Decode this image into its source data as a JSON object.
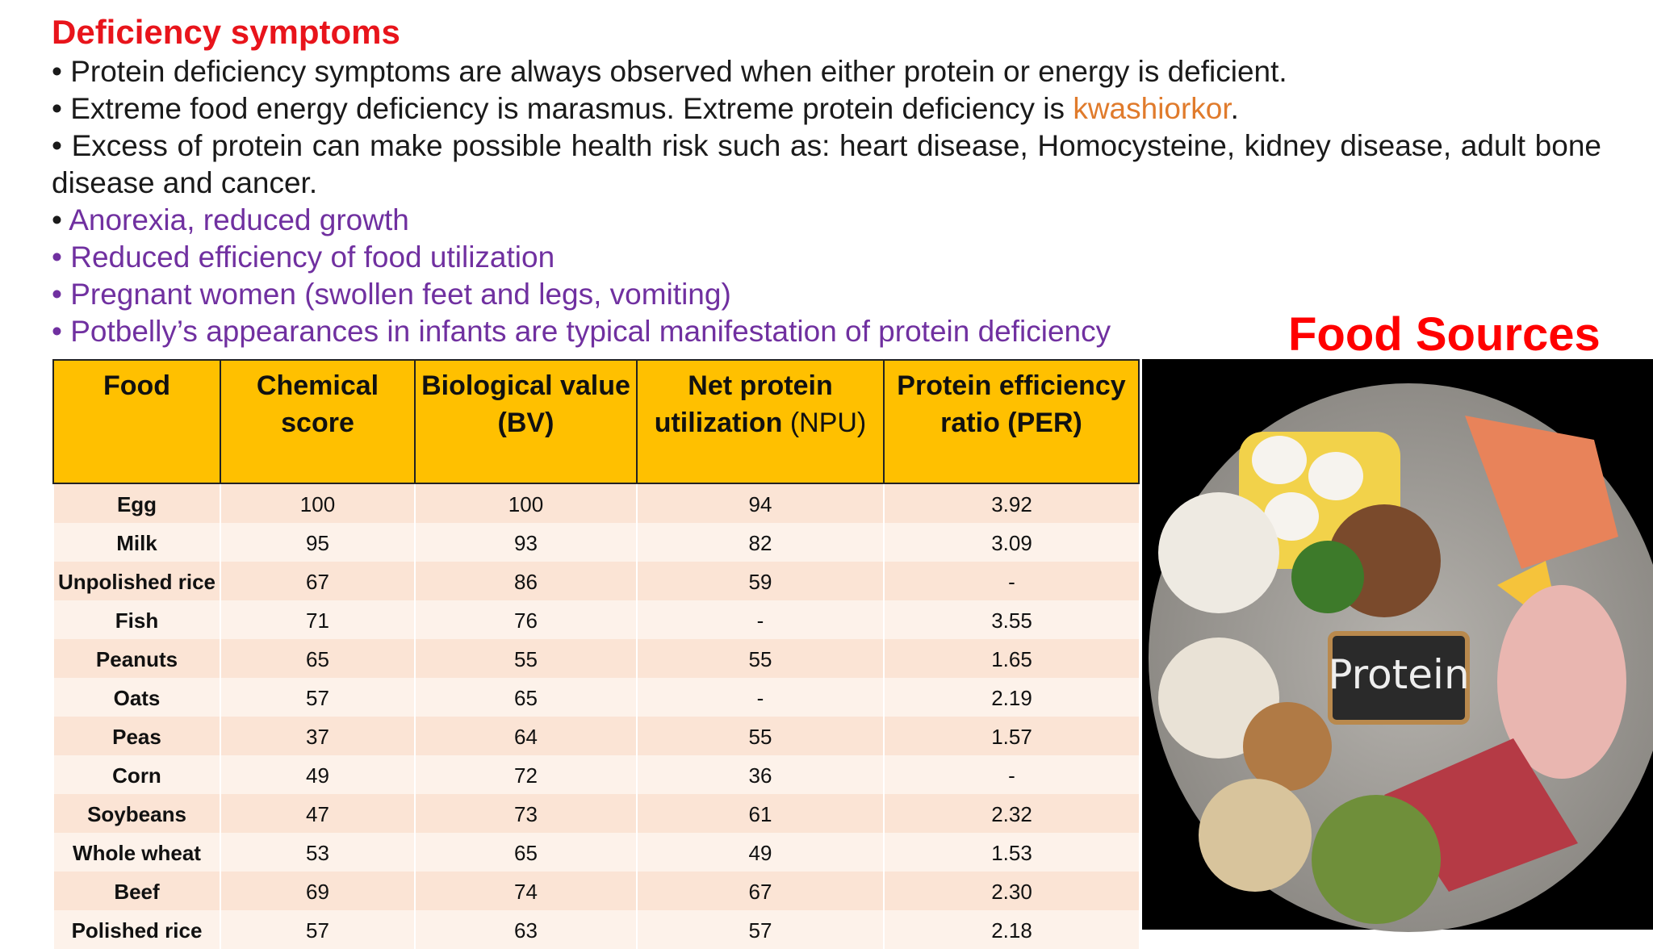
{
  "heading": "Deficiency symptoms",
  "bullets": [
    [
      "• Protein deficiency symptoms are always observed when either protein or energy is deficient."
    ],
    [
      "•   Extreme food energy deficiency is marasmus. Extreme protein deficiency is ",
      "kwashiorkor",
      "."
    ],
    [
      "• Excess of protein can make possible health risk such as: heart disease, Homocysteine, kidney disease, adult bone disease and cancer."
    ],
    [
      "• ",
      "Anorexia, reduced growth"
    ],
    [
      "• Reduced efficiency of food utilization"
    ],
    [
      "• Pregnant women (swollen feet and legs, vomiting)"
    ],
    [
      "• Potbelly’s appearances in infants are typical manifestation of protein deficiency"
    ]
  ],
  "table": {
    "header": [
      [
        "Food"
      ],
      [
        "Chemical score"
      ],
      [
        "Biological value (BV)"
      ],
      [
        "Net protein utilization",
        "(NPU)"
      ],
      [
        "Protein efficiency ratio (PER)"
      ]
    ],
    "rows": [
      [
        "Egg",
        "100",
        "100",
        "94",
        "3.92"
      ],
      [
        "Milk",
        "95",
        "93",
        "82",
        "3.09"
      ],
      [
        "Unpolished rice",
        "67",
        "86",
        "59",
        "-"
      ],
      [
        "Fish",
        "71",
        "76",
        "-",
        "3.55"
      ],
      [
        "Peanuts",
        "65",
        "55",
        "55",
        "1.65"
      ],
      [
        "Oats",
        "57",
        "65",
        "-",
        "2.19"
      ],
      [
        "Peas",
        "37",
        "64",
        "55",
        "1.57"
      ],
      [
        "Corn",
        "49",
        "72",
        "36",
        "-"
      ],
      [
        "Soybeans",
        "47",
        "73",
        "61",
        "2.32"
      ],
      [
        "Whole wheat",
        "53",
        "65",
        "49",
        "1.53"
      ],
      [
        "Beef",
        "69",
        "74",
        "67",
        "2.30"
      ],
      [
        "Polished rice",
        "57",
        "63",
        "57",
        "2.18"
      ]
    ]
  },
  "image": {
    "caption": "Food Sources",
    "board": "Protein"
  }
}
